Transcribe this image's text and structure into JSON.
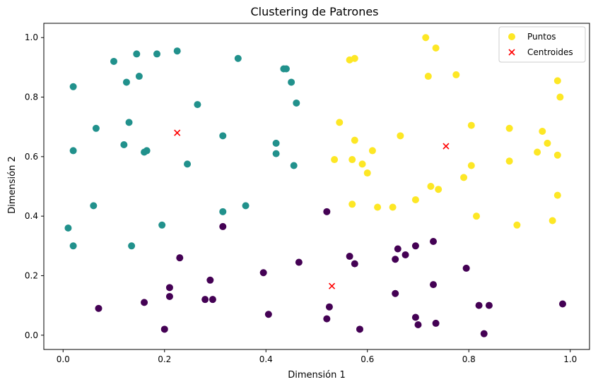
{
  "chart_data": {
    "type": "scatter",
    "title": "Clustering de Patrones",
    "xlabel": "Dimensión 1",
    "ylabel": "Dimensión 2",
    "xlim": [
      -0.038,
      1.038
    ],
    "ylim": [
      -0.048,
      1.048
    ],
    "xticks": [
      0.0,
      0.2,
      0.4,
      0.6,
      0.8,
      1.0
    ],
    "xtick_labels": [
      "0.0",
      "0.2",
      "0.4",
      "0.6",
      "0.8",
      "1.0"
    ],
    "yticks": [
      0.0,
      0.2,
      0.4,
      0.6,
      0.8,
      1.0
    ],
    "ytick_labels": [
      "0.0",
      "0.2",
      "0.4",
      "0.6",
      "0.8",
      "1.0"
    ],
    "grid": false,
    "legend_position": "top-right",
    "legend": [
      {
        "label": "Puntos",
        "marker": "circle",
        "color": "#fde725"
      },
      {
        "label": "Centroides",
        "marker": "x",
        "color": "#ff0000"
      }
    ],
    "cluster_colors": [
      "#440154",
      "#21918c",
      "#fde725"
    ],
    "series": [
      {
        "cluster": 0,
        "points": [
          [
            0.07,
            0.09
          ],
          [
            0.16,
            0.11
          ],
          [
            0.2,
            0.02
          ],
          [
            0.21,
            0.16
          ],
          [
            0.21,
            0.13
          ],
          [
            0.23,
            0.26
          ],
          [
            0.28,
            0.12
          ],
          [
            0.29,
            0.185
          ],
          [
            0.295,
            0.12
          ],
          [
            0.315,
            0.365
          ],
          [
            0.395,
            0.21
          ],
          [
            0.405,
            0.07
          ],
          [
            0.465,
            0.245
          ],
          [
            0.52,
            0.415
          ],
          [
            0.52,
            0.055
          ],
          [
            0.525,
            0.095
          ],
          [
            0.565,
            0.265
          ],
          [
            0.575,
            0.24
          ],
          [
            0.585,
            0.02
          ],
          [
            0.655,
            0.255
          ],
          [
            0.655,
            0.14
          ],
          [
            0.66,
            0.29
          ],
          [
            0.675,
            0.27
          ],
          [
            0.695,
            0.3
          ],
          [
            0.695,
            0.06
          ],
          [
            0.7,
            0.035
          ],
          [
            0.73,
            0.315
          ],
          [
            0.73,
            0.17
          ],
          [
            0.735,
            0.04
          ],
          [
            0.795,
            0.225
          ],
          [
            0.82,
            0.1
          ],
          [
            0.83,
            0.005
          ],
          [
            0.84,
            0.1
          ],
          [
            0.985,
            0.105
          ]
        ]
      },
      {
        "cluster": 1,
        "points": [
          [
            0.01,
            0.36
          ],
          [
            0.02,
            0.62
          ],
          [
            0.02,
            0.835
          ],
          [
            0.02,
            0.3
          ],
          [
            0.06,
            0.435
          ],
          [
            0.065,
            0.695
          ],
          [
            0.1,
            0.92
          ],
          [
            0.12,
            0.64
          ],
          [
            0.125,
            0.85
          ],
          [
            0.13,
            0.715
          ],
          [
            0.135,
            0.3
          ],
          [
            0.145,
            0.945
          ],
          [
            0.15,
            0.87
          ],
          [
            0.16,
            0.615
          ],
          [
            0.165,
            0.62
          ],
          [
            0.185,
            0.945
          ],
          [
            0.195,
            0.37
          ],
          [
            0.225,
            0.955
          ],
          [
            0.245,
            0.575
          ],
          [
            0.265,
            0.775
          ],
          [
            0.315,
            0.415
          ],
          [
            0.315,
            0.67
          ],
          [
            0.345,
            0.93
          ],
          [
            0.36,
            0.435
          ],
          [
            0.42,
            0.645
          ],
          [
            0.42,
            0.61
          ],
          [
            0.435,
            0.895
          ],
          [
            0.44,
            0.895
          ],
          [
            0.45,
            0.85
          ],
          [
            0.455,
            0.57
          ],
          [
            0.46,
            0.78
          ]
        ]
      },
      {
        "cluster": 2,
        "points": [
          [
            0.535,
            0.59
          ],
          [
            0.545,
            0.715
          ],
          [
            0.565,
            0.925
          ],
          [
            0.57,
            0.59
          ],
          [
            0.57,
            0.44
          ],
          [
            0.575,
            0.93
          ],
          [
            0.575,
            0.655
          ],
          [
            0.59,
            0.575
          ],
          [
            0.6,
            0.545
          ],
          [
            0.61,
            0.62
          ],
          [
            0.62,
            0.43
          ],
          [
            0.665,
            0.67
          ],
          [
            0.65,
            0.43
          ],
          [
            0.695,
            0.455
          ],
          [
            0.715,
            1.0
          ],
          [
            0.72,
            0.87
          ],
          [
            0.725,
            0.5
          ],
          [
            0.735,
            0.965
          ],
          [
            0.74,
            0.49
          ],
          [
            0.775,
            0.875
          ],
          [
            0.79,
            0.53
          ],
          [
            0.805,
            0.705
          ],
          [
            0.805,
            0.57
          ],
          [
            0.815,
            0.4
          ],
          [
            0.88,
            0.695
          ],
          [
            0.88,
            0.585
          ],
          [
            0.895,
            0.37
          ],
          [
            0.935,
            0.615
          ],
          [
            0.945,
            0.685
          ],
          [
            0.955,
            0.645
          ],
          [
            0.965,
            0.385
          ],
          [
            0.975,
            0.855
          ],
          [
            0.975,
            0.605
          ],
          [
            0.975,
            0.47
          ],
          [
            0.98,
            0.8
          ]
        ]
      }
    ],
    "centroids": [
      [
        0.225,
        0.68
      ],
      [
        0.53,
        0.165
      ],
      [
        0.755,
        0.635
      ]
    ]
  }
}
